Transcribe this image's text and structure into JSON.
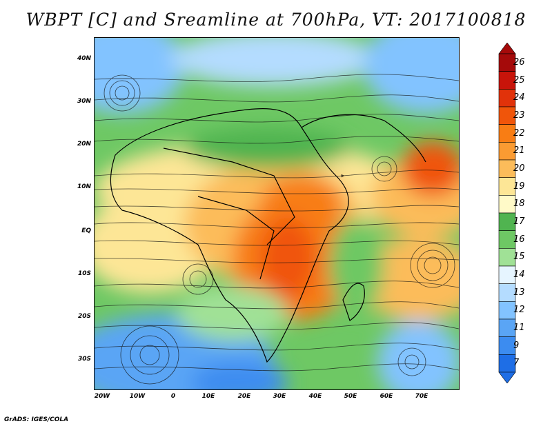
{
  "title": "WBPT [C] and Sreamline at 700hPa, VT: 2017100818",
  "credit": "GrADS: IGES/COLA",
  "map": {
    "lat_labels": [
      "40N",
      "30N",
      "20N",
      "10N",
      "EQ",
      "10S",
      "20S",
      "30S"
    ],
    "lon_labels": [
      "20W",
      "10W",
      "0",
      "10E",
      "20E",
      "30E",
      "40E",
      "50E",
      "60E",
      "70E"
    ],
    "variable": "Wet-bulb potential temperature",
    "level": "700hPa",
    "valid_time": "2017100818"
  },
  "colorbar": {
    "labels": [
      "26",
      "25",
      "24",
      "23",
      "22",
      "21",
      "20",
      "19",
      "18",
      "17",
      "16",
      "15",
      "14",
      "13",
      "12",
      "11",
      "9",
      "7"
    ],
    "colors": [
      "#a50a0a",
      "#c8140a",
      "#e1320a",
      "#f0550a",
      "#f87d14",
      "#fa9b32",
      "#fcbc5a",
      "#fde696",
      "#fffac8",
      "#50b450",
      "#6ec864",
      "#a0e196",
      "#e6f5ff",
      "#b4dcff",
      "#82c3ff",
      "#5aa5f5",
      "#3c8cf0",
      "#1e6ee6"
    ]
  }
}
